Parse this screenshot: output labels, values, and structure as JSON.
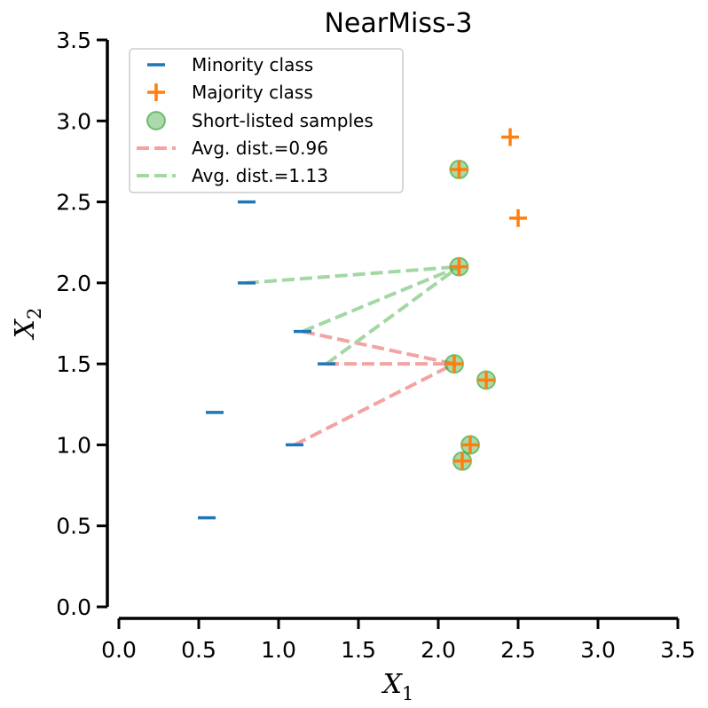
{
  "chart_data": {
    "type": "scatter",
    "title": "NearMiss-3",
    "xlabel": "X",
    "xlabel_sub": "1",
    "ylabel": "X",
    "ylabel_sub": "2",
    "xlim": [
      0.0,
      3.5
    ],
    "ylim": [
      0.0,
      3.5
    ],
    "xticks": [
      "0.0",
      "0.5",
      "1.0",
      "1.5",
      "2.0",
      "2.5",
      "3.0",
      "3.5"
    ],
    "yticks": [
      "0.0",
      "0.5",
      "1.0",
      "1.5",
      "2.0",
      "2.5",
      "3.0",
      "3.5"
    ],
    "grid": false,
    "legend_position": "top-left",
    "colors": {
      "minority": "#1f77b4",
      "majority": "#ff7f0e",
      "shortlisted": "#2ca02c",
      "dist_red": "#f4a3a3",
      "dist_green": "#a3d7a3"
    },
    "series": [
      {
        "name": "Minority class",
        "marker": "_",
        "points": [
          [
            0.55,
            0.55
          ],
          [
            0.6,
            1.2
          ],
          [
            0.8,
            2.5
          ],
          [
            0.8,
            2.0
          ],
          [
            1.1,
            1.0
          ],
          [
            1.15,
            1.7
          ],
          [
            1.3,
            1.5
          ]
        ]
      },
      {
        "name": "Majority class",
        "marker": "+",
        "points": [
          [
            2.45,
            2.9
          ],
          [
            2.5,
            2.4
          ],
          [
            2.13,
            2.7
          ],
          [
            2.13,
            2.1
          ],
          [
            2.1,
            1.5
          ],
          [
            2.3,
            1.4
          ],
          [
            2.2,
            1.0
          ],
          [
            2.15,
            0.9
          ]
        ]
      },
      {
        "name": "Short-listed samples",
        "marker": "o",
        "points": [
          [
            2.13,
            2.7
          ],
          [
            2.13,
            2.1
          ],
          [
            2.1,
            1.5
          ],
          [
            2.3,
            1.4
          ],
          [
            2.2,
            1.0
          ],
          [
            2.15,
            0.9
          ]
        ]
      }
    ],
    "distance_lines": [
      {
        "name": "Avg. dist.=0.96",
        "color": "dist_red",
        "segments": [
          [
            [
              1.1,
              1.0
            ],
            [
              2.1,
              1.5
            ]
          ],
          [
            [
              1.15,
              1.7
            ],
            [
              2.1,
              1.5
            ]
          ],
          [
            [
              1.3,
              1.5
            ],
            [
              2.1,
              1.5
            ]
          ]
        ]
      },
      {
        "name": "Avg. dist.=1.13",
        "color": "dist_green",
        "segments": [
          [
            [
              0.8,
              2.0
            ],
            [
              2.13,
              2.1
            ]
          ],
          [
            [
              1.15,
              1.7
            ],
            [
              2.13,
              2.1
            ]
          ],
          [
            [
              1.3,
              1.5
            ],
            [
              2.13,
              2.1
            ]
          ]
        ]
      }
    ]
  }
}
